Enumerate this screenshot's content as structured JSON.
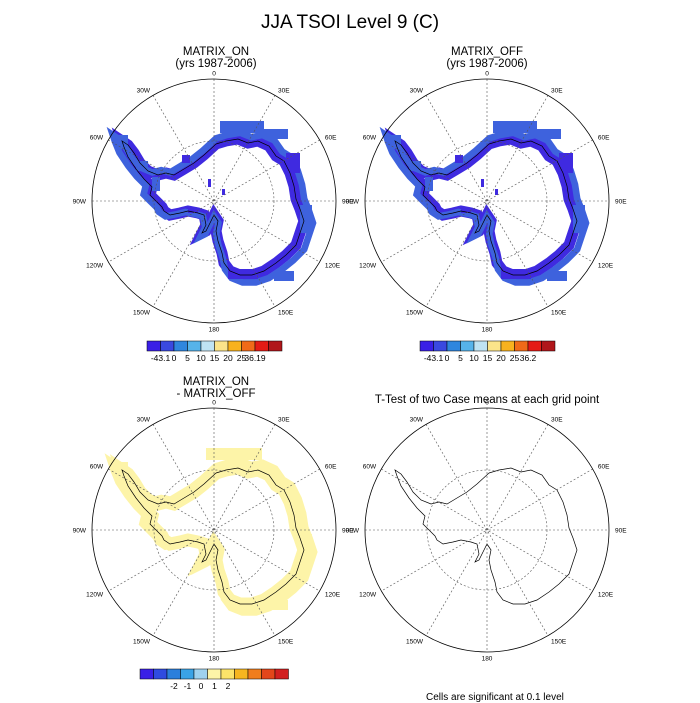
{
  "title": "JJA TSOI Level 9 (C)",
  "longitude_labels": [
    "0",
    "30E",
    "60E",
    "90E",
    "120E",
    "150E",
    "180",
    "150W",
    "120W",
    "90W",
    "60W",
    "30W"
  ],
  "panels": [
    {
      "title_line1": "MATRIX_ON",
      "title_line2": "(yrs 1987-2006)"
    },
    {
      "title_line1": "MATRIX_OFF",
      "title_line2": "(yrs 1987-2006)"
    },
    {
      "title_line1": "MATRIX_ON",
      "title_line2": "- MATRIX_OFF"
    },
    {
      "title_line1": "T-Test of two Case means at each grid point",
      "title_line2": ""
    }
  ],
  "colorbars": [
    {
      "colors": [
        "#3a1fe6",
        "#3a49e0",
        "#2f86de",
        "#56b3ea",
        "#bfe3f3",
        "#fbe48a",
        "#f8b21e",
        "#f06a18",
        "#e41b15",
        "#b0161a"
      ],
      "labels": [
        "-43.1",
        "0",
        "5",
        "10",
        "15",
        "20",
        "25",
        "36.19"
      ]
    },
    {
      "colors": [
        "#3a1fe6",
        "#3a49e0",
        "#2f86de",
        "#56b3ea",
        "#bfe3f3",
        "#fbe48a",
        "#f8b21e",
        "#f06a18",
        "#e41b15",
        "#b0161a"
      ],
      "labels": [
        "-43.1",
        "0",
        "5",
        "10",
        "15",
        "20",
        "25",
        "36.2"
      ]
    },
    {
      "colors": [
        "#3a1fe6",
        "#2f4be0",
        "#2b7fdc",
        "#3aa3e6",
        "#9fd2ef",
        "#fdf4a8",
        "#fbe36a",
        "#f6b51f",
        "#f07d1c",
        "#e3461a",
        "#d21f1f"
      ],
      "labels": [
        "-2",
        "-1",
        "0",
        "1",
        "2"
      ]
    }
  ],
  "footnote": "Cells are significant at 0.1 level"
}
